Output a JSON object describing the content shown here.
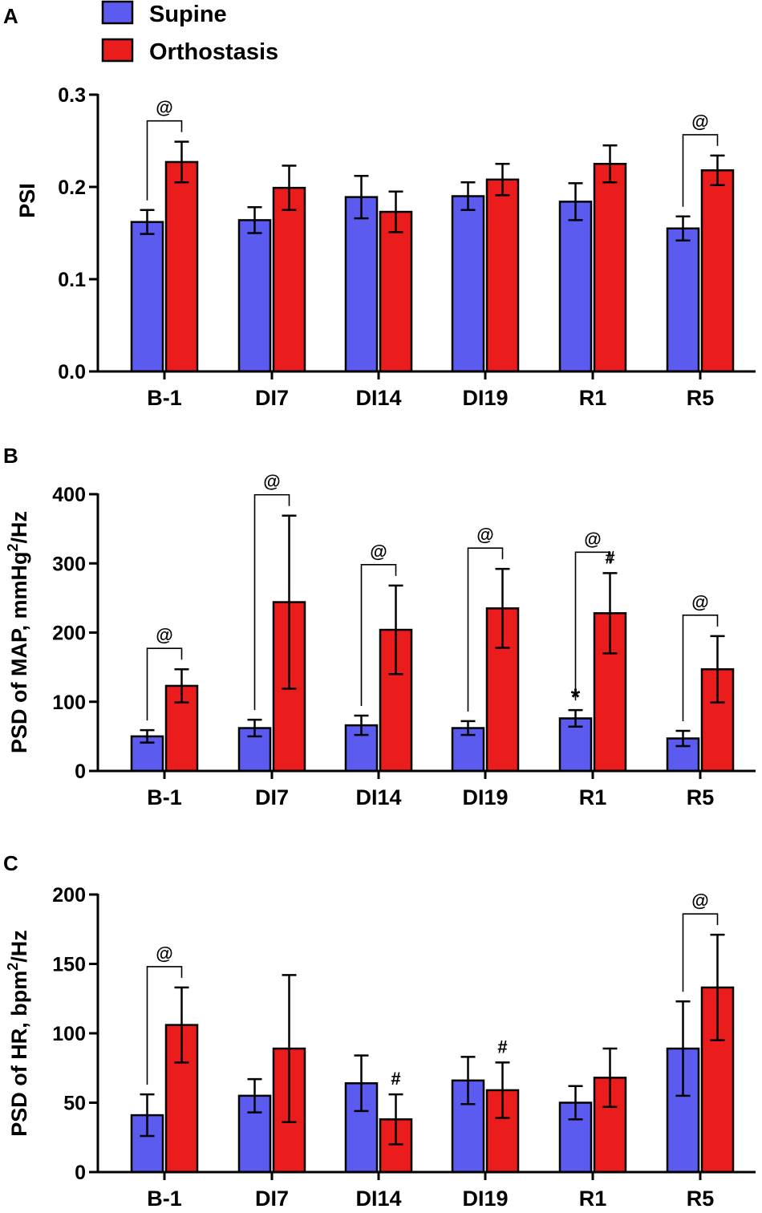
{
  "legend": [
    {
      "label": "Supine",
      "color": "#5b5bf0"
    },
    {
      "label": "Orthostasis",
      "color": "#ea1c1c"
    }
  ],
  "chart_data": [
    {
      "type": "bar",
      "panel": "A",
      "title": "",
      "xlabel": "",
      "ylabel": "PSI",
      "ylim": [
        0,
        0.3
      ],
      "yticks": [
        0,
        0.1,
        0.2,
        0.3
      ],
      "ytick_labels": [
        "0.0",
        "0.1",
        "0.2",
        "0.3"
      ],
      "categories": [
        "B-1",
        "DI7",
        "DI14",
        "DI19",
        "R1",
        "R5"
      ],
      "series": [
        {
          "name": "Supine",
          "values": [
            0.162,
            0.164,
            0.189,
            0.19,
            0.184,
            0.155
          ],
          "errors": [
            0.013,
            0.014,
            0.023,
            0.015,
            0.02,
            0.013
          ]
        },
        {
          "name": "Orthostasis",
          "values": [
            0.227,
            0.199,
            0.173,
            0.208,
            0.225,
            0.218
          ],
          "errors": [
            0.022,
            0.024,
            0.022,
            0.017,
            0.02,
            0.016
          ]
        }
      ],
      "annotations": [
        {
          "text": "@",
          "type": "bracket",
          "category": "B-1"
        },
        {
          "text": "@",
          "type": "bracket",
          "category": "R5"
        }
      ]
    },
    {
      "type": "bar",
      "panel": "B",
      "title": "",
      "xlabel": "",
      "ylabel": "PSD of MAP, mmHg",
      "ylabel_sup": "2",
      "ylabel_suffix": "/Hz",
      "ylim": [
        0,
        400
      ],
      "yticks": [
        0,
        100,
        200,
        300,
        400
      ],
      "ytick_labels": [
        "0",
        "100",
        "200",
        "300",
        "400"
      ],
      "categories": [
        "B-1",
        "DI7",
        "DI14",
        "DI19",
        "R1",
        "R5"
      ],
      "series": [
        {
          "name": "Supine",
          "values": [
            50,
            62,
            66,
            62,
            76,
            47
          ],
          "errors": [
            9,
            12,
            14,
            10,
            12,
            11
          ]
        },
        {
          "name": "Orthostasis",
          "values": [
            123,
            244,
            204,
            235,
            228,
            147
          ],
          "errors": [
            24,
            125,
            64,
            57,
            58,
            48
          ]
        }
      ],
      "annotations": [
        {
          "text": "@",
          "type": "bracket",
          "category": "B-1"
        },
        {
          "text": "@",
          "type": "bracket",
          "category": "DI7"
        },
        {
          "text": "@",
          "type": "bracket",
          "category": "DI14"
        },
        {
          "text": "@",
          "type": "bracket",
          "category": "DI19"
        },
        {
          "text": "@",
          "type": "bracket",
          "category": "R1"
        },
        {
          "text": "@",
          "type": "bracket",
          "category": "R5"
        },
        {
          "text": "#",
          "type": "mark",
          "category": "R1",
          "series": "Orthostasis"
        },
        {
          "text": "*",
          "type": "mark",
          "category": "R1",
          "series": "Supine"
        }
      ]
    },
    {
      "type": "bar",
      "panel": "C",
      "title": "",
      "xlabel": "",
      "ylabel": "PSD of HR, bpm",
      "ylabel_sup": "2",
      "ylabel_suffix": "/Hz",
      "ylim": [
        0,
        200
      ],
      "yticks": [
        0,
        50,
        100,
        150,
        200
      ],
      "ytick_labels": [
        "0",
        "50",
        "100",
        "150",
        "200"
      ],
      "categories": [
        "B-1",
        "DI7",
        "DI14",
        "DI19",
        "R1",
        "R5"
      ],
      "series": [
        {
          "name": "Supine",
          "values": [
            41,
            55,
            64,
            66,
            50,
            89
          ],
          "errors": [
            15,
            12,
            20,
            17,
            12,
            34
          ]
        },
        {
          "name": "Orthostasis",
          "values": [
            106,
            89,
            38,
            59,
            68,
            133
          ],
          "errors": [
            27,
            53,
            18,
            20,
            21,
            38
          ]
        }
      ],
      "annotations": [
        {
          "text": "@",
          "type": "bracket",
          "category": "B-1"
        },
        {
          "text": "@",
          "type": "bracket",
          "category": "R5"
        },
        {
          "text": "#",
          "type": "mark",
          "category": "DI14",
          "series": "Orthostasis"
        },
        {
          "text": "#",
          "type": "mark",
          "category": "DI19",
          "series": "Orthostasis"
        }
      ]
    }
  ]
}
